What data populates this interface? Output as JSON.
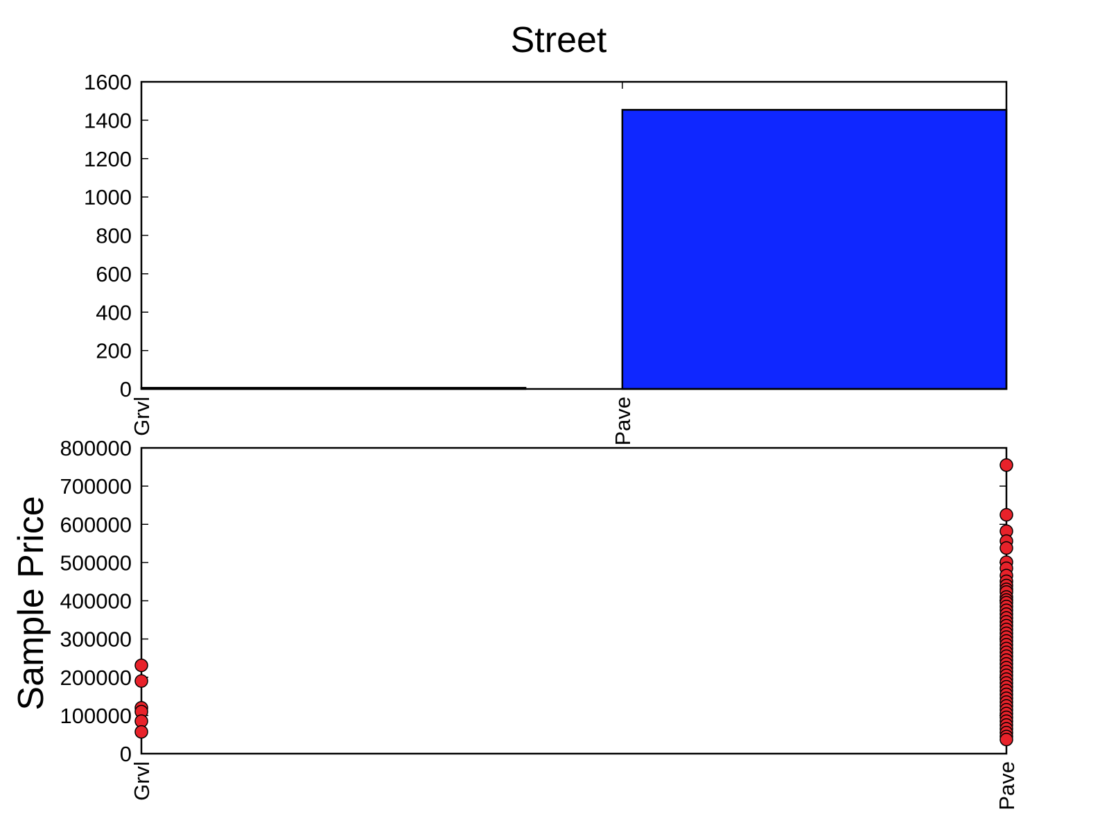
{
  "chart_data": [
    {
      "type": "bar",
      "title": "Street",
      "categories": [
        "Grvl",
        "Pave"
      ],
      "values": [
        6,
        1454
      ],
      "ylim": [
        0,
        1600
      ],
      "yticks": [
        0,
        200,
        400,
        600,
        800,
        1000,
        1200,
        1400,
        1600
      ],
      "xlabel": "",
      "ylabel": "",
      "bar_color": "#0f27ff"
    },
    {
      "type": "scatter",
      "title": "",
      "categories": [
        "Grvl",
        "Pave"
      ],
      "ylabel": "Sample Price",
      "xlabel": "",
      "ylim": [
        0,
        800000
      ],
      "yticks": [
        0,
        100000,
        200000,
        300000,
        400000,
        500000,
        600000,
        700000,
        800000
      ],
      "marker_color": "#e8222a",
      "series": [
        {
          "name": "Grvl",
          "category": "Grvl",
          "values": [
            231000,
            190000,
            120000,
            110000,
            85000,
            57000
          ]
        },
        {
          "name": "Pave",
          "category": "Pave",
          "values": [
            755000,
            625000,
            582000,
            556000,
            538000,
            501000,
            485000,
            466000,
            451000,
            440000,
            430000,
            423000,
            410000,
            402000,
            395000,
            385000,
            375000,
            365000,
            355000,
            345000,
            335000,
            325000,
            315000,
            305000,
            295000,
            285000,
            275000,
            265000,
            255000,
            245000,
            235000,
            225000,
            215000,
            205000,
            195000,
            185000,
            175000,
            165000,
            155000,
            145000,
            135000,
            125000,
            115000,
            105000,
            95000,
            85000,
            75000,
            65000,
            55000,
            45000,
            37000
          ]
        }
      ]
    }
  ]
}
